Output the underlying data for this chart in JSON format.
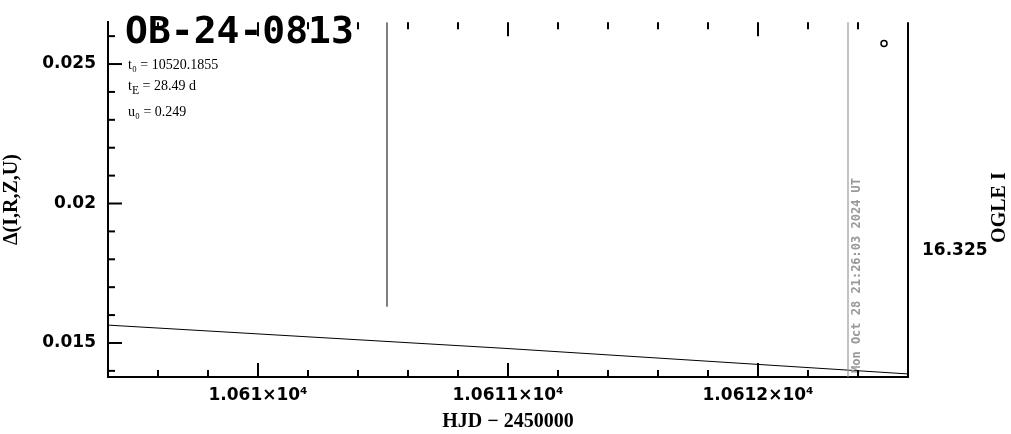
{
  "chart_data": {
    "type": "line",
    "title": "OB-24-0813",
    "xlabel": "HJD − 2450000",
    "ylabel": "Δ(I,R,Z,U)",
    "y2label": "OGLE I",
    "annotations": [
      "t₀ = 10520.1855",
      "t$_{E}$ = 28.49 d",
      "u₀ = 0.249",
      "16.325",
      {
        "text": "Mon Oct 28 21:26:03 2024 UT",
        "x": 10612.36
      }
    ],
    "xlim": [
      10609.4,
      10612.6
    ],
    "xticks": [
      {
        "value": 10609.6,
        "label": null
      },
      {
        "value": 10609.8,
        "label": null
      },
      {
        "value": 10610,
        "label": "1.061×10⁴"
      },
      {
        "value": 10610.2,
        "label": null
      },
      {
        "value": 10610.4,
        "label": null
      },
      {
        "value": 10610.6,
        "label": null
      },
      {
        "value": 10610.8,
        "label": null
      },
      {
        "value": 10611,
        "label": "1.0611×10⁴"
      },
      {
        "value": 10611.2,
        "label": null
      },
      {
        "value": 10611.4,
        "label": null
      },
      {
        "value": 10611.6,
        "label": null
      },
      {
        "value": 10611.8,
        "label": null
      },
      {
        "value": 10612,
        "label": "1.0612×10⁴"
      },
      {
        "value": 10612.2,
        "label": null
      },
      {
        "value": 10612.4,
        "label": null
      }
    ],
    "ylim": [
      0.01378,
      0.0265
    ],
    "yticks": [
      {
        "value": 0.014,
        "label": null
      },
      0.015,
      {
        "value": 0.016,
        "label": null
      },
      {
        "value": 0.017,
        "label": null
      },
      {
        "value": 0.018,
        "label": null
      },
      {
        "value": 0.019,
        "label": null
      },
      0.02,
      {
        "value": 0.021,
        "label": null
      },
      {
        "value": 0.022,
        "label": null
      },
      {
        "value": 0.023,
        "label": null
      },
      {
        "value": 0.024,
        "label": null
      },
      0.025,
      {
        "value": 0.026,
        "label": null
      }
    ],
    "ref_lines": [
      {
        "axis": "x",
        "value": 10612.36,
        "color": "#999999"
      }
    ],
    "series": [
      {
        "color": "#000000",
        "marker": "none",
        "x": [
          10609.4,
          10611,
          10612.6
        ],
        "values": [
          0.01564,
          0.0148,
          0.01389
        ]
      },
      {
        "type": "line",
        "color": "#000000",
        "marker": "none",
        "x": [
          10610.516,
          10610.516
        ],
        "values": [
          0.0163,
          0.0265
        ]
      },
      {
        "type": "scatter",
        "color": "#000000",
        "marker": "circle",
        "x": [
          10612.504
        ],
        "values": [
          0.02574
        ]
      }
    ]
  }
}
